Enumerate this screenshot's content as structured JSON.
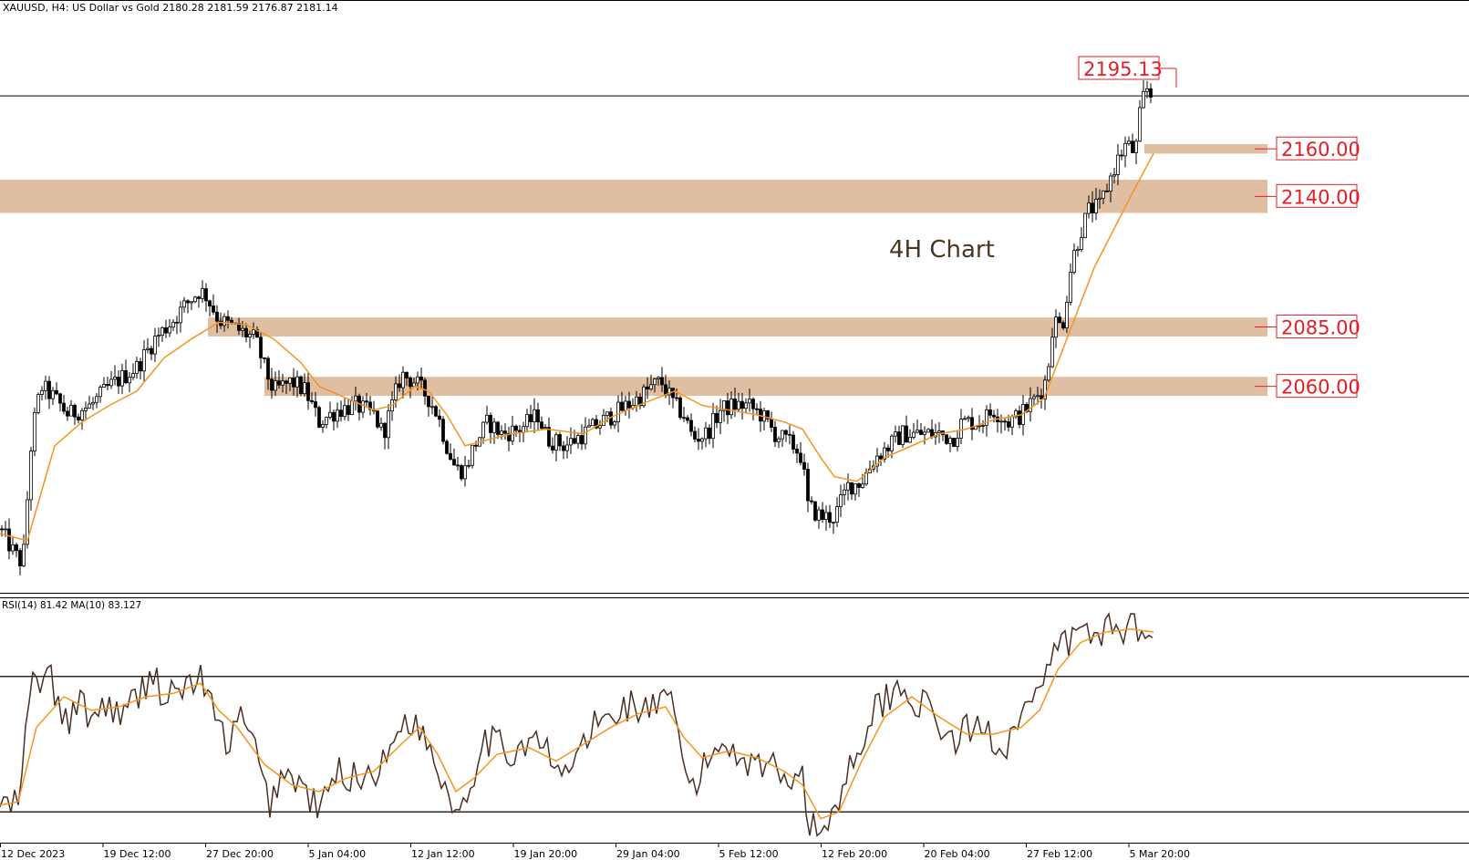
{
  "header": {
    "symbol_line": "XAUUSD, H4:  US Dollar vs Gold  2180.28 2181.59 2176.87 2181.14"
  },
  "annotation": {
    "title": "4H Chart"
  },
  "rsi_panel": {
    "label": "RSI(14) 81.42 MA(10) 83.127"
  },
  "colors": {
    "candles": "#000000",
    "ma_line": "#f7941d",
    "rsi_line": "#4a2f22",
    "zones": "#dfbea2",
    "level_labels": "#e21f26",
    "text": "#000000",
    "annotation_text": "#4a3625"
  },
  "chart_data": [
    {
      "type": "candlestick",
      "symbol": "XAUUSD",
      "timeframe": "H4",
      "last_ohlc": {
        "open": 2180.28,
        "high": 2181.59,
        "low": 2176.87,
        "close": 2181.14
      },
      "x_ticks": [
        "12 Dec 2023",
        "19 Dec 12:00",
        "27 Dec 20:00",
        "5 Jan 04:00",
        "12 Jan 12:00",
        "19 Jan 20:00",
        "29 Jan 04:00",
        "5 Feb 12:00",
        "12 Feb 20:00",
        "20 Feb 04:00",
        "27 Feb 12:00",
        "5 Mar 20:00"
      ],
      "y_range": [
        1975,
        2215
      ],
      "close_path": [
        [
          0,
          2000
        ],
        [
          15,
          1990
        ],
        [
          25,
          1985
        ],
        [
          35,
          2040
        ],
        [
          45,
          2060
        ],
        [
          60,
          2055
        ],
        [
          75,
          2048
        ],
        [
          100,
          2052
        ],
        [
          120,
          2060
        ],
        [
          150,
          2068
        ],
        [
          170,
          2080
        ],
        [
          190,
          2088
        ],
        [
          205,
          2095
        ],
        [
          218,
          2100
        ],
        [
          225,
          2099
        ],
        [
          240,
          2088
        ],
        [
          255,
          2085
        ],
        [
          270,
          2082
        ],
        [
          280,
          2080
        ],
        [
          290,
          2068
        ],
        [
          300,
          2058
        ],
        [
          320,
          2062
        ],
        [
          335,
          2058
        ],
        [
          350,
          2045
        ],
        [
          370,
          2050
        ],
        [
          390,
          2052
        ],
        [
          410,
          2048
        ],
        [
          420,
          2040
        ],
        [
          430,
          2052
        ],
        [
          440,
          2065
        ],
        [
          455,
          2062
        ],
        [
          470,
          2055
        ],
        [
          480,
          2048
        ],
        [
          490,
          2035
        ],
        [
          500,
          2025
        ],
        [
          510,
          2025
        ],
        [
          520,
          2035
        ],
        [
          535,
          2045
        ],
        [
          550,
          2040
        ],
        [
          570,
          2042
        ],
        [
          590,
          2048
        ],
        [
          600,
          2038
        ],
        [
          620,
          2035
        ],
        [
          640,
          2040
        ],
        [
          660,
          2045
        ],
        [
          680,
          2050
        ],
        [
          700,
          2055
        ],
        [
          715,
          2060
        ],
        [
          725,
          2062
        ],
        [
          740,
          2052
        ],
        [
          750,
          2048
        ],
        [
          760,
          2038
        ],
        [
          775,
          2040
        ],
        [
          790,
          2050
        ],
        [
          805,
          2052
        ],
        [
          820,
          2052
        ],
        [
          835,
          2048
        ],
        [
          850,
          2040
        ],
        [
          870,
          2035
        ],
        [
          880,
          2030
        ],
        [
          885,
          2010
        ],
        [
          900,
          2005
        ],
        [
          915,
          2005
        ],
        [
          930,
          2018
        ],
        [
          945,
          2020
        ],
        [
          960,
          2030
        ],
        [
          975,
          2035
        ],
        [
          990,
          2040
        ],
        [
          1010,
          2040
        ],
        [
          1030,
          2040
        ],
        [
          1045,
          2038
        ],
        [
          1055,
          2045
        ],
        [
          1075,
          2045
        ],
        [
          1090,
          2050
        ],
        [
          1105,
          2045
        ],
        [
          1120,
          2048
        ],
        [
          1135,
          2055
        ],
        [
          1145,
          2060
        ],
        [
          1150,
          2070
        ],
        [
          1155,
          2088
        ],
        [
          1165,
          2085
        ],
        [
          1175,
          2112
        ],
        [
          1185,
          2125
        ],
        [
          1195,
          2135
        ],
        [
          1205,
          2135
        ],
        [
          1215,
          2145
        ],
        [
          1225,
          2155
        ],
        [
          1235,
          2162
        ],
        [
          1245,
          2158
        ],
        [
          1252,
          2180
        ],
        [
          1258,
          2185
        ],
        [
          1265,
          2181.14
        ]
      ],
      "ma_path": [
        [
          0,
          1998
        ],
        [
          30,
          1995
        ],
        [
          60,
          2035
        ],
        [
          90,
          2045
        ],
        [
          120,
          2052
        ],
        [
          150,
          2058
        ],
        [
          180,
          2072
        ],
        [
          210,
          2080
        ],
        [
          240,
          2087
        ],
        [
          270,
          2086
        ],
        [
          300,
          2080
        ],
        [
          330,
          2070
        ],
        [
          350,
          2060
        ],
        [
          380,
          2055
        ],
        [
          410,
          2050
        ],
        [
          430,
          2052
        ],
        [
          455,
          2060
        ],
        [
          470,
          2058
        ],
        [
          490,
          2048
        ],
        [
          510,
          2035
        ],
        [
          530,
          2037
        ],
        [
          560,
          2040
        ],
        [
          600,
          2042
        ],
        [
          640,
          2040
        ],
        [
          670,
          2047
        ],
        [
          700,
          2052
        ],
        [
          720,
          2055
        ],
        [
          740,
          2058
        ],
        [
          770,
          2052
        ],
        [
          800,
          2050
        ],
        [
          830,
          2048
        ],
        [
          860,
          2045
        ],
        [
          880,
          2042
        ],
        [
          900,
          2030
        ],
        [
          915,
          2022
        ],
        [
          940,
          2020
        ],
        [
          970,
          2030
        ],
        [
          1000,
          2035
        ],
        [
          1030,
          2040
        ],
        [
          1060,
          2042
        ],
        [
          1090,
          2046
        ],
        [
          1120,
          2048
        ],
        [
          1145,
          2055
        ],
        [
          1160,
          2070
        ],
        [
          1180,
          2090
        ],
        [
          1200,
          2110
        ],
        [
          1220,
          2125
        ],
        [
          1240,
          2140
        ],
        [
          1265,
          2158
        ]
      ],
      "resistance_levels": [
        {
          "label": "2195.13",
          "value": 2195.13
        },
        {
          "label": "2160.00",
          "value": 2160.0
        },
        {
          "label": "2140.00",
          "value": 2140.0
        },
        {
          "label": "2085.00",
          "value": 2085.0
        },
        {
          "label": "2060.00",
          "value": 2060.0
        }
      ],
      "zones": [
        {
          "from": 2158,
          "to": 2162
        },
        {
          "from": 2133,
          "to": 2147
        },
        {
          "from": 2081,
          "to": 2089
        },
        {
          "from": 2056,
          "to": 2064
        }
      ]
    },
    {
      "type": "line",
      "indicator": "RSI(14)",
      "value": 81.42,
      "ma_value": 83.127,
      "y_range": [
        22,
        92
      ],
      "levels": [
        70,
        30
      ],
      "rsi_path": [
        [
          0,
          33
        ],
        [
          10,
          31
        ],
        [
          20,
          33
        ],
        [
          35,
          68
        ],
        [
          55,
          70
        ],
        [
          70,
          55
        ],
        [
          85,
          62
        ],
        [
          100,
          58
        ],
        [
          120,
          62
        ],
        [
          135,
          58
        ],
        [
          150,
          64
        ],
        [
          160,
          68
        ],
        [
          170,
          72
        ],
        [
          180,
          62
        ],
        [
          195,
          66
        ],
        [
          210,
          68
        ],
        [
          220,
          70
        ],
        [
          230,
          62
        ],
        [
          240,
          55
        ],
        [
          250,
          50
        ],
        [
          265,
          58
        ],
        [
          280,
          48
        ],
        [
          295,
          32
        ],
        [
          310,
          42
        ],
        [
          330,
          38
        ],
        [
          350,
          30
        ],
        [
          370,
          42
        ],
        [
          390,
          40
        ],
        [
          410,
          42
        ],
        [
          425,
          45
        ],
        [
          440,
          58
        ],
        [
          455,
          56
        ],
        [
          470,
          50
        ],
        [
          485,
          40
        ],
        [
          500,
          30
        ],
        [
          515,
          38
        ],
        [
          530,
          52
        ],
        [
          545,
          50
        ],
        [
          560,
          47
        ],
        [
          580,
          52
        ],
        [
          600,
          48
        ],
        [
          610,
          40
        ],
        [
          630,
          45
        ],
        [
          650,
          55
        ],
        [
          670,
          58
        ],
        [
          690,
          62
        ],
        [
          705,
          60
        ],
        [
          725,
          62
        ],
        [
          740,
          60
        ],
        [
          750,
          40
        ],
        [
          765,
          38
        ],
        [
          780,
          48
        ],
        [
          800,
          50
        ],
        [
          820,
          45
        ],
        [
          840,
          45
        ],
        [
          860,
          40
        ],
        [
          880,
          44
        ],
        [
          885,
          26
        ],
        [
          900,
          24
        ],
        [
          915,
          30
        ],
        [
          930,
          42
        ],
        [
          945,
          52
        ],
        [
          960,
          60
        ],
        [
          975,
          65
        ],
        [
          990,
          66
        ],
        [
          1010,
          62
        ],
        [
          1030,
          56
        ],
        [
          1045,
          50
        ],
        [
          1060,
          54
        ],
        [
          1080,
          55
        ],
        [
          1100,
          48
        ],
        [
          1115,
          58
        ],
        [
          1130,
          62
        ],
        [
          1145,
          65
        ],
        [
          1155,
          78
        ],
        [
          1170,
          80
        ],
        [
          1185,
          83
        ],
        [
          1200,
          82
        ],
        [
          1215,
          85
        ],
        [
          1230,
          84
        ],
        [
          1245,
          85
        ],
        [
          1255,
          86
        ],
        [
          1265,
          81.42
        ]
      ],
      "rsi_ma_path": [
        [
          0,
          32
        ],
        [
          20,
          33
        ],
        [
          40,
          55
        ],
        [
          70,
          64
        ],
        [
          100,
          60
        ],
        [
          130,
          61
        ],
        [
          160,
          64
        ],
        [
          190,
          65
        ],
        [
          220,
          68
        ],
        [
          240,
          60
        ],
        [
          260,
          55
        ],
        [
          290,
          44
        ],
        [
          320,
          38
        ],
        [
          350,
          36
        ],
        [
          380,
          40
        ],
        [
          410,
          42
        ],
        [
          440,
          50
        ],
        [
          460,
          55
        ],
        [
          480,
          47
        ],
        [
          500,
          36
        ],
        [
          520,
          40
        ],
        [
          545,
          47
        ],
        [
          580,
          49
        ],
        [
          610,
          45
        ],
        [
          640,
          50
        ],
        [
          670,
          55
        ],
        [
          700,
          59
        ],
        [
          730,
          61
        ],
        [
          750,
          52
        ],
        [
          770,
          46
        ],
        [
          800,
          48
        ],
        [
          830,
          46
        ],
        [
          860,
          42
        ],
        [
          880,
          38
        ],
        [
          900,
          28
        ],
        [
          920,
          30
        ],
        [
          945,
          45
        ],
        [
          970,
          58
        ],
        [
          1000,
          64
        ],
        [
          1030,
          58
        ],
        [
          1060,
          53
        ],
        [
          1090,
          53
        ],
        [
          1120,
          55
        ],
        [
          1140,
          60
        ],
        [
          1160,
          72
        ],
        [
          1185,
          80
        ],
        [
          1210,
          83
        ],
        [
          1240,
          84
        ],
        [
          1265,
          83.127
        ]
      ]
    }
  ]
}
